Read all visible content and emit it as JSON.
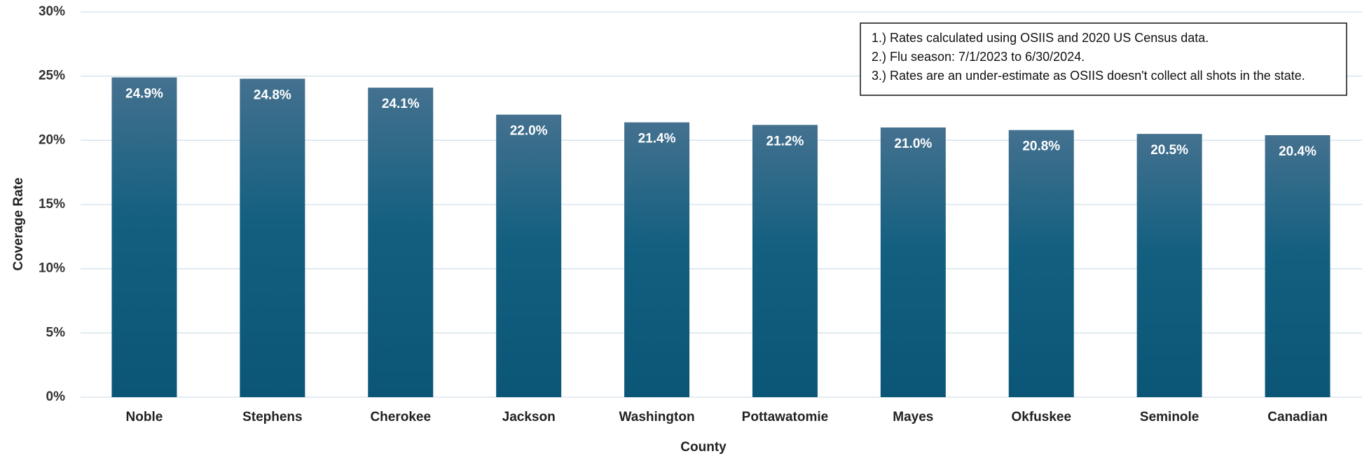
{
  "chart_data": {
    "type": "bar",
    "categories": [
      "Noble",
      "Stephens",
      "Cherokee",
      "Jackson",
      "Washington",
      "Pottawatomie",
      "Mayes",
      "Okfuskee",
      "Seminole",
      "Canadian"
    ],
    "values": [
      24.9,
      24.8,
      24.1,
      22.0,
      21.4,
      21.2,
      21.0,
      20.8,
      20.5,
      20.4
    ],
    "value_labels": [
      "24.9%",
      "24.8%",
      "24.1%",
      "22.0%",
      "21.4%",
      "21.2%",
      "21.0%",
      "20.8%",
      "20.5%",
      "20.4%"
    ],
    "color": "#0f5c7c",
    "ylim": [
      0,
      30
    ],
    "yticks": [
      {
        "value": 0,
        "label": "0%"
      },
      {
        "value": 5,
        "label": "5%"
      },
      {
        "value": 10,
        "label": "10%"
      },
      {
        "value": 15,
        "label": "15%"
      },
      {
        "value": 20,
        "label": "20%"
      },
      {
        "value": 25,
        "label": "25%"
      },
      {
        "value": 30,
        "label": "30%"
      }
    ],
    "grid": true,
    "xlabel": "County",
    "ylabel": "Coverage Rate",
    "annotations": [
      "1.) Rates calculated using OSIIS and 2020 US Census data.",
      "2.) Flu season: 7/1/2023 to 6/30/2024.",
      "3.) Rates are an under-estimate as OSIIS doesn't collect all shots in the state."
    ]
  }
}
